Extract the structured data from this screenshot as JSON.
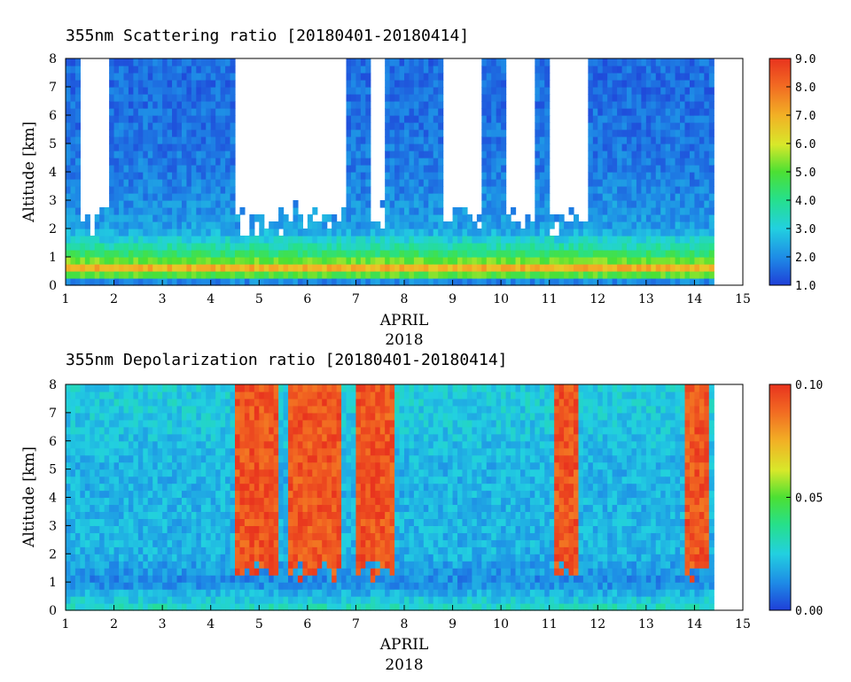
{
  "chart_data": [
    {
      "type": "heatmap",
      "title": "355nm Scattering ratio [20180401-20180414]",
      "ylabel": "Altitude [km]",
      "xlabel": "APRIL",
      "xlabel_year": "2018",
      "x_ticks": [
        "1",
        "2",
        "3",
        "4",
        "5",
        "6",
        "7",
        "8",
        "9",
        "10",
        "11",
        "12",
        "13",
        "14",
        "15"
      ],
      "y_ticks": [
        "0",
        "1",
        "2",
        "3",
        "4",
        "5",
        "6",
        "7",
        "8"
      ],
      "xlim": [
        1,
        15
      ],
      "ylim": [
        0,
        8
      ],
      "data_end_day": 14.3,
      "colorbar": {
        "range": [
          1.0,
          9.0
        ],
        "ticks": [
          "1.0",
          "2.0",
          "3.0",
          "4.0",
          "5.0",
          "6.0",
          "7.0",
          "8.0",
          "9.0"
        ],
        "colors": [
          "#1f3fd8",
          "#1e8ae6",
          "#22d0e0",
          "#26e08a",
          "#4ce033",
          "#d8e82a",
          "#f2b025",
          "#f26a22",
          "#e8331e"
        ]
      },
      "profile": [
        {
          "alt_km": 0.25,
          "value": 2.0
        },
        {
          "alt_km": 0.5,
          "value": 8.0
        },
        {
          "alt_km": 0.8,
          "value": 5.5
        },
        {
          "alt_km": 1.2,
          "value": 4.0
        },
        {
          "alt_km": 2.0,
          "value": 2.3
        },
        {
          "alt_km": 4.0,
          "value": 1.8
        },
        {
          "alt_km": 7.0,
          "value": 1.6
        }
      ],
      "clear_gaps_days": [
        [
          1.35,
          1.95
        ],
        [
          4.55,
          6.75
        ],
        [
          7.25,
          7.6
        ],
        [
          8.75,
          9.6
        ],
        [
          10.1,
          10.7
        ],
        [
          11.0,
          11.8
        ]
      ]
    },
    {
      "type": "heatmap",
      "title": "355nm Depolarization ratio [20180401-20180414]",
      "ylabel": "Altitude [km]",
      "xlabel": "APRIL",
      "xlabel_year": "2018",
      "x_ticks": [
        "1",
        "2",
        "3",
        "4",
        "5",
        "6",
        "7",
        "8",
        "9",
        "10",
        "11",
        "12",
        "13",
        "14",
        "15"
      ],
      "y_ticks": [
        "0",
        "1",
        "2",
        "3",
        "4",
        "5",
        "6",
        "7",
        "8"
      ],
      "xlim": [
        1,
        15
      ],
      "ylim": [
        0,
        8
      ],
      "data_end_day": 14.3,
      "colorbar": {
        "range": [
          0.0,
          0.1
        ],
        "ticks": [
          "0.00",
          "0.05",
          "0.10"
        ],
        "colors": [
          "#1f3fd8",
          "#1e8ae6",
          "#22d0e0",
          "#26e08a",
          "#4ce033",
          "#d8e82a",
          "#f2b025",
          "#f26a22",
          "#e8331e"
        ]
      },
      "high_depol_periods_days": [
        [
          4.55,
          5.35
        ],
        [
          5.6,
          6.65
        ],
        [
          6.95,
          7.75
        ],
        [
          11.05,
          11.55
        ],
        [
          13.75,
          14.3
        ]
      ],
      "profile": [
        {
          "alt_km": 0.1,
          "value": 0.03
        },
        {
          "alt_km": 1.0,
          "value": 0.012
        },
        {
          "alt_km": 2.0,
          "value": 0.02
        },
        {
          "alt_km": 5.0,
          "value": 0.02
        },
        {
          "alt_km": 7.5,
          "value": 0.025
        }
      ]
    }
  ]
}
